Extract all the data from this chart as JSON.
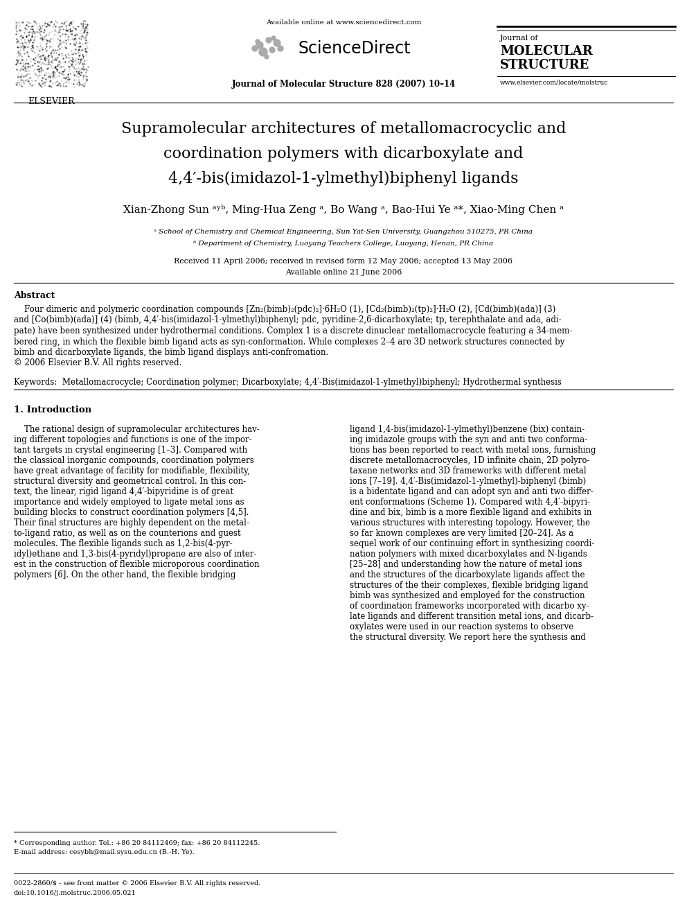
{
  "bg_color": "#ffffff",
  "page_width": 9.92,
  "page_height": 13.23,
  "header": {
    "available_online": "Available online at www.sciencedirect.com",
    "journal_line1": "Journal of",
    "journal_line2": "MOLECULAR",
    "journal_line3": "STRUCTURE",
    "journal_info": "Journal of Molecular Structure 828 (2007) 10–14",
    "website": "www.elsevier.com/locate/molstruc",
    "elsevier_label": "ELSEVIER"
  },
  "title_lines": [
    "Supramolecular architectures of metallomacrocyclic and",
    "coordination polymers with dicarboxylate and",
    "4,4′-bis(imidazol-1-ylmethyl)biphenyl ligands"
  ],
  "affil_a": "ᵃ School of Chemistry and Chemical Engineering, Sun Yat-Sen University, Guangzhou 510275, PR China",
  "affil_b": "ᵇ Department of Chemistry, Luoyang Teachers College, Luoyang, Henan, PR China",
  "received": "Received 11 April 2006; received in revised form 12 May 2006; accepted 13 May 2006",
  "available": "Available online 21 June 2006",
  "abstract_title": "Abstract",
  "section1_title": "1. Introduction",
  "footnote1": "* Corresponding author. Tel.: +86 20 84112469; fax: +86 20 84112245.",
  "footnote2": "E-mail address: cesybh@mail.sysu.edu.cn (B.-H. Ye).",
  "footnote3": "0022-2860/$ - see front matter © 2006 Elsevier B.V. All rights reserved.",
  "footnote4": "doi:10.1016/j.molstruc.2006.05.021"
}
